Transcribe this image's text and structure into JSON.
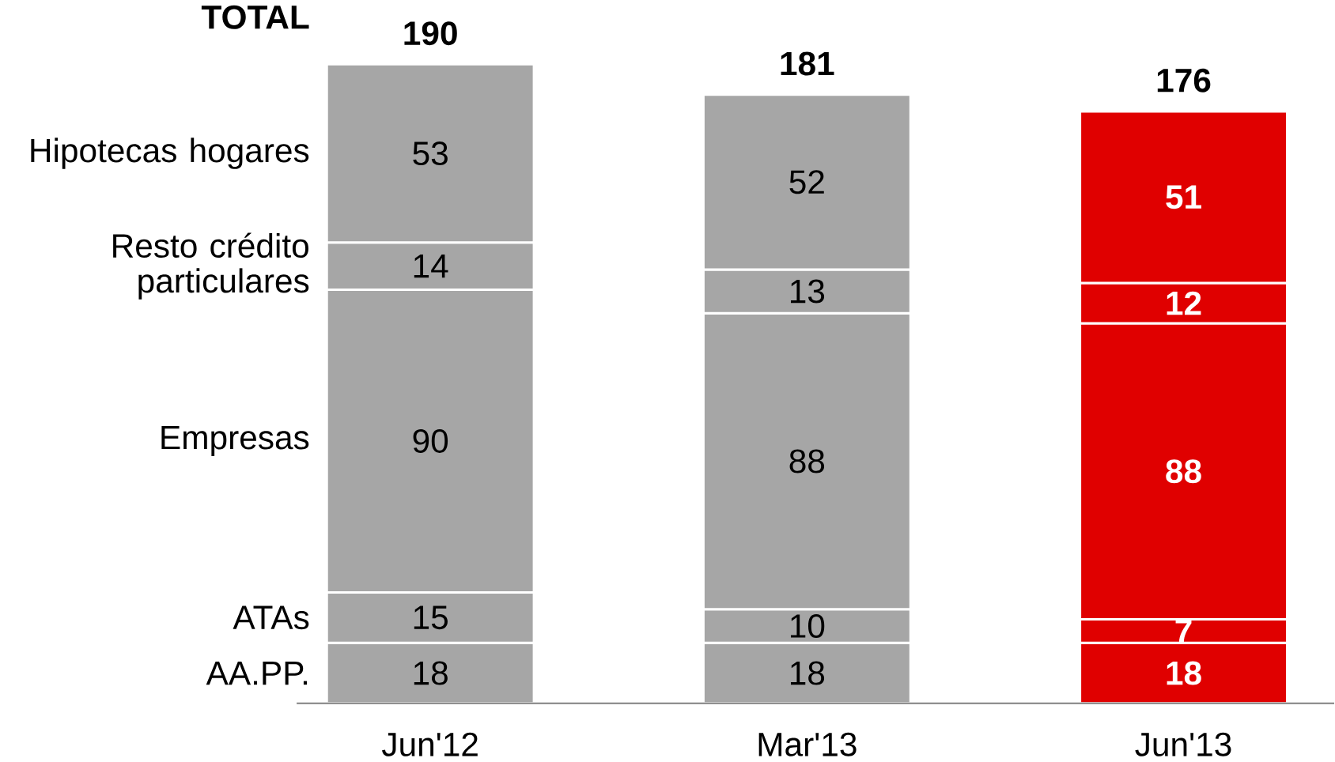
{
  "chart_data": {
    "type": "bar",
    "stacked": true,
    "data_labels": true,
    "categories": [
      "Jun'12",
      "Mar'13",
      "Jun'13"
    ],
    "series": [
      {
        "name": "AA.PP.",
        "colors": [
          "#a6a6a6",
          "#a6a6a6",
          "#e00000"
        ],
        "values": [
          18,
          18,
          18
        ]
      },
      {
        "name": "ATAs",
        "colors": [
          "#a6a6a6",
          "#a6a6a6",
          "#e00000"
        ],
        "values": [
          15,
          10,
          7
        ]
      },
      {
        "name": "Empresas",
        "colors": [
          "#a6a6a6",
          "#a6a6a6",
          "#e00000"
        ],
        "values": [
          90,
          88,
          88
        ]
      },
      {
        "name": "Resto crédito particulares",
        "colors": [
          "#a6a6a6",
          "#a6a6a6",
          "#e00000"
        ],
        "values": [
          14,
          13,
          12
        ]
      },
      {
        "name": "Hipotecas hogares",
        "colors": [
          "#a6a6a6",
          "#a6a6a6",
          "#e00000"
        ],
        "values": [
          53,
          52,
          51
        ]
      }
    ],
    "totals": [
      "190",
      "181",
      "176"
    ],
    "annotations": [
      "TOTAL"
    ]
  }
}
